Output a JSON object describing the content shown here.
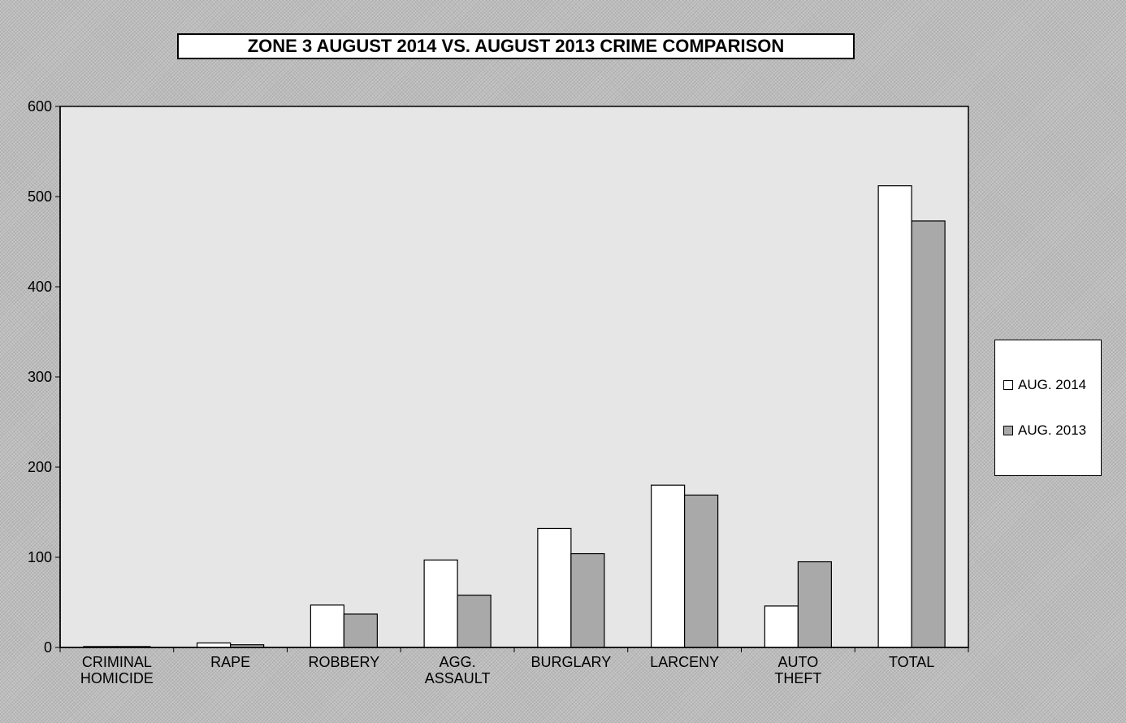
{
  "chart_data": {
    "type": "bar",
    "title": "ZONE 3  AUGUST 2014 VS. AUGUST 2013 CRIME COMPARISON",
    "categories": [
      [
        "CRIMINAL",
        "HOMICIDE"
      ],
      [
        "RAPE"
      ],
      [
        "ROBBERY"
      ],
      [
        "AGG.",
        "ASSAULT"
      ],
      [
        "BURGLARY"
      ],
      [
        "LARCENY"
      ],
      [
        "AUTO",
        "THEFT"
      ],
      [
        "TOTAL"
      ]
    ],
    "series": [
      {
        "name": "AUG. 2014",
        "color": "#ffffff",
        "values": [
          1,
          5,
          47,
          97,
          132,
          180,
          46,
          512
        ]
      },
      {
        "name": "AUG. 2013",
        "color": "#a9a9a9",
        "values": [
          1,
          3,
          37,
          58,
          104,
          169,
          95,
          473
        ]
      }
    ],
    "ylim": [
      0,
      600
    ],
    "yticks": [
      0,
      100,
      200,
      300,
      400,
      500,
      600
    ],
    "grid": false,
    "legend_position": "right"
  }
}
